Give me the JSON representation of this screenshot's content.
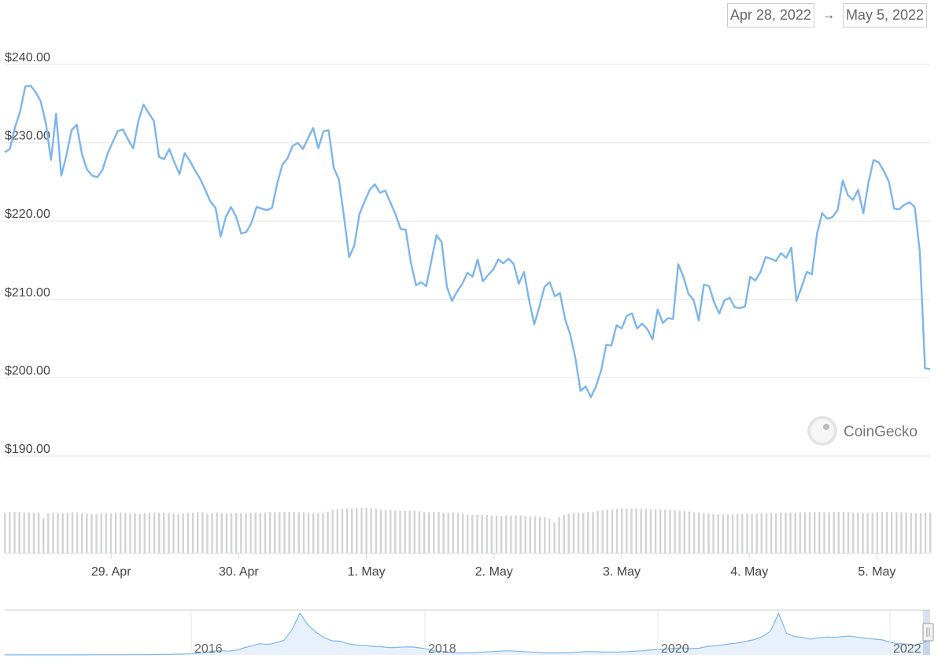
{
  "range_selector": {
    "from": "Apr 28, 2022",
    "arrow": "→",
    "to": "May 5, 2022"
  },
  "watermark": "CoinGecko",
  "colors": {
    "line": "#7cb5ec",
    "volume": "#d3d3d3",
    "grid": "#e6e6e6"
  },
  "chart_data": {
    "type": "line",
    "ylim": [
      190,
      240
    ],
    "yticks": [
      "$240.00",
      "$230.00",
      "$220.00",
      "$210.00",
      "$200.00",
      "$190.00"
    ],
    "xticks": [
      "29. Apr",
      "30. Apr",
      "1. May",
      "2. May",
      "3. May",
      "4. May",
      "5. May"
    ],
    "grid": true,
    "x_start": "2022-04-28 04:00",
    "x_end": "2022-05-05 10:00",
    "series": [
      {
        "values": [
          228.8,
          229.2,
          232,
          234,
          237.2,
          237.3,
          236.5,
          235.3,
          232.5,
          227.8,
          233.7,
          225.8,
          228.4,
          231.6,
          232.3,
          228.6,
          226.6,
          225.8,
          225.6,
          226.5,
          228.6,
          230.1,
          231.5,
          231.7,
          230.4,
          229.3,
          232.8,
          234.9,
          233.8,
          232.8,
          228.2,
          227.9,
          229.2,
          227.5,
          226,
          228.7,
          227.7,
          226.5,
          225.4,
          224,
          222.5,
          221.7,
          218,
          220.5,
          221.8,
          220.6,
          218.4,
          218.6,
          219.8,
          221.8,
          221.6,
          221.4,
          221.7,
          224.8,
          227.2,
          228,
          229.6,
          230,
          229.2,
          230.6,
          231.9,
          229.3,
          231.5,
          231.6,
          226.8,
          225.3,
          220.5,
          215.4,
          216.9,
          220.9,
          222.5,
          224,
          224.7,
          223.6,
          223.9,
          222.4,
          220.9,
          219,
          218.9,
          214.7,
          211.8,
          212.2,
          211.7,
          215,
          218.2,
          217.3,
          211.6,
          209.8,
          211,
          212,
          213.4,
          212.9,
          215.1,
          212.3,
          213.1,
          213.8,
          215.1,
          214.6,
          215.2,
          214.5,
          212,
          213.5,
          209.9,
          206.8,
          209.1,
          211.6,
          212.2,
          210.4,
          210.8,
          207.5,
          205.5,
          202.5,
          198.3,
          198.9,
          197.5,
          198.9,
          200.9,
          204.2,
          204.1,
          206.7,
          206.3,
          207.9,
          208.2,
          206.3,
          206.9,
          206.2,
          204.9,
          208.7,
          207,
          207.6,
          207.5,
          214.5,
          212.9,
          210.7,
          209.9,
          207.3,
          211.9,
          211.7,
          209.6,
          208.2,
          209.9,
          210.2,
          209,
          208.9,
          209.1,
          212.9,
          212.4,
          213.5,
          215.4,
          215.2,
          214.9,
          215.9,
          215.3,
          216.6,
          209.8,
          211.6,
          213.5,
          213.2,
          218.4,
          221,
          220.3,
          220.5,
          221.4,
          225.2,
          223.3,
          222.7,
          224,
          221,
          224.9,
          227.8,
          227.5,
          226.4,
          225,
          221.6,
          221.5,
          222.1,
          222.4,
          221.8,
          216.1,
          201.2,
          201.1
        ]
      }
    ],
    "volume": [
      84,
      86,
      86,
      86,
      85,
      85,
      85,
      85,
      73,
      84,
      84,
      84,
      84,
      85,
      86,
      86,
      84,
      83,
      82,
      82,
      84,
      84,
      84,
      85,
      85,
      84,
      84,
      84,
      82,
      84,
      84,
      85,
      85,
      85,
      84,
      83,
      82,
      83,
      84,
      85,
      86,
      86,
      82,
      84,
      85,
      84,
      83,
      84,
      84,
      84,
      84,
      85,
      85,
      84,
      85,
      86,
      86,
      86,
      86,
      86,
      86,
      86,
      86,
      85,
      84,
      84,
      84,
      87,
      91,
      92,
      93,
      94,
      94,
      95,
      95,
      95,
      95,
      93,
      91,
      90,
      90,
      89,
      89,
      89,
      89,
      89,
      88,
      86,
      86,
      86,
      86,
      85,
      85,
      85,
      84,
      83,
      81,
      80,
      80,
      80,
      80,
      79,
      79,
      78,
      79,
      79,
      79,
      79,
      78,
      77,
      77,
      76,
      75,
      72,
      64,
      76,
      80,
      82,
      84,
      85,
      85,
      86,
      86,
      89,
      90,
      91,
      92,
      93,
      94,
      94,
      94,
      94,
      93,
      93,
      92,
      92,
      92,
      91,
      91,
      90,
      89,
      88,
      87,
      86,
      85,
      84,
      83,
      82,
      81,
      81,
      81,
      81,
      82,
      82,
      83,
      83,
      83,
      84,
      84,
      84,
      84,
      85,
      85,
      85,
      85,
      86,
      86,
      86,
      86,
      86,
      86,
      86,
      86,
      86,
      86,
      86,
      85,
      85,
      85,
      85,
      85,
      86,
      86,
      86,
      86,
      86,
      86,
      85,
      85,
      84,
      84,
      85,
      85
    ],
    "navigator": {
      "labels": [
        "2016",
        "2018",
        "2020",
        "2022"
      ],
      "values": [
        0.2,
        0.2,
        0.2,
        0.2,
        0.2,
        0.2,
        0.2,
        0.2,
        0.2,
        0.2,
        0.2,
        0.3,
        0.3,
        0.3,
        0.4,
        0.4,
        0.5,
        0.6,
        0.8,
        1,
        1.2,
        1.5,
        2,
        2.5,
        4,
        5,
        9,
        10,
        9,
        11,
        17,
        22,
        27,
        25,
        29,
        35,
        60,
        100,
        72,
        55,
        42,
        34,
        33,
        27,
        24,
        23,
        21,
        20,
        18,
        18,
        19,
        19,
        17,
        14,
        9,
        8,
        6,
        5,
        5,
        6,
        7,
        8,
        9,
        10,
        9,
        8,
        7,
        6,
        5,
        5,
        5,
        6,
        7,
        8,
        8,
        7,
        7,
        7,
        8,
        9,
        10,
        12,
        13,
        14,
        16,
        17,
        15,
        16,
        20,
        22,
        24,
        27,
        29,
        33,
        37,
        44,
        57,
        100,
        52,
        44,
        42,
        38,
        41,
        43,
        42,
        44,
        45,
        42,
        40,
        38,
        36,
        30,
        27,
        26,
        24,
        28,
        38
      ]
    }
  }
}
